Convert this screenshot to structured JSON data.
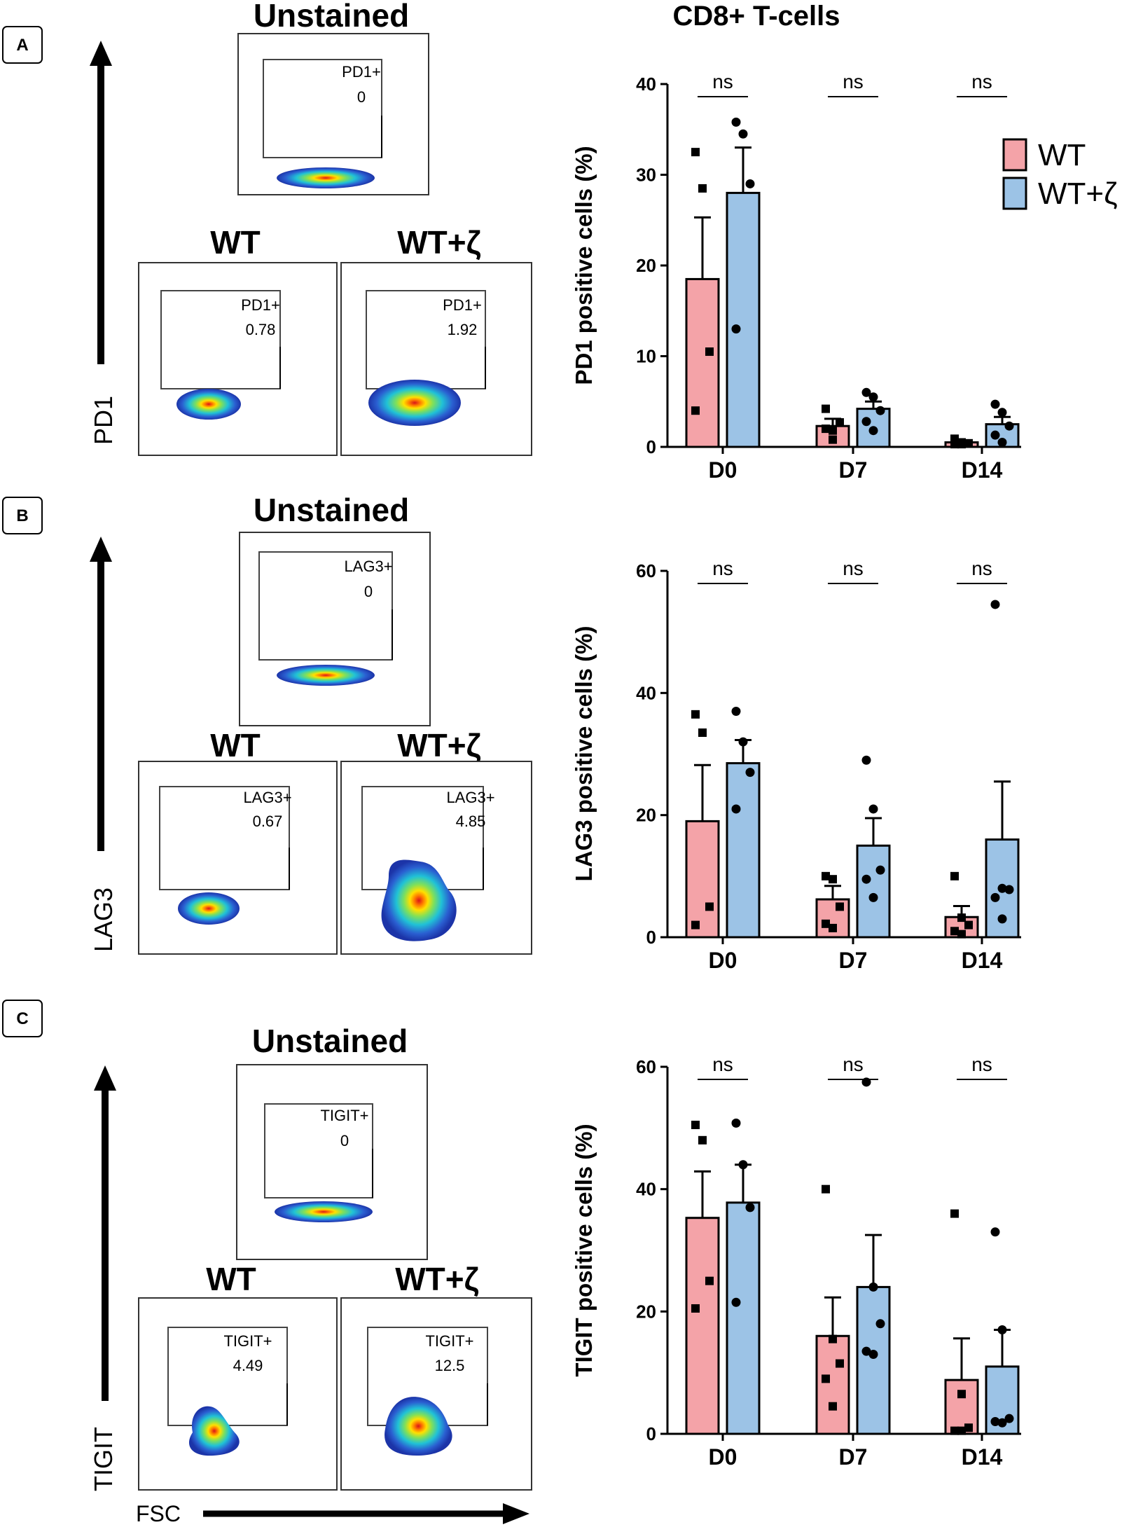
{
  "figure_title": "CD8+ T-cells",
  "legend": {
    "entries": [
      {
        "label": "WT",
        "color": "#F4A3A8"
      },
      {
        "label": "WT+ζ",
        "color": "#9CC3E6"
      }
    ]
  },
  "colors": {
    "wt_bar": "#F4A3A8",
    "wtz_bar": "#9CC3E6",
    "axis": "#000000",
    "blob_outer": "#1f3fbf",
    "blob_mid": "#22c0d8",
    "blob_mid2": "#7fe05a",
    "blob_core": "#ffd400",
    "blob_center": "#e3201b"
  },
  "x_axis_label": "FSC",
  "panels": [
    {
      "letter": "A",
      "marker": "PD1",
      "unstained": {
        "title": "Unstained",
        "gate_label": "PD1+",
        "gate_value": "0"
      },
      "wt": {
        "title": "WT",
        "gate_label": "PD1+",
        "gate_value": "0.78"
      },
      "wtz": {
        "title": "WT+ζ",
        "gate_label": "PD1+",
        "gate_value": "1.92"
      }
    },
    {
      "letter": "B",
      "marker": "LAG3",
      "unstained": {
        "title": "Unstained",
        "gate_label": "LAG3+",
        "gate_value": "0"
      },
      "wt": {
        "title": "WT",
        "gate_label": "LAG3+",
        "gate_value": "0.67"
      },
      "wtz": {
        "title": "WT+ζ",
        "gate_label": "LAG3+",
        "gate_value": "4.85"
      }
    },
    {
      "letter": "C",
      "marker": "TIGIT",
      "unstained": {
        "title": "Unstained",
        "gate_label": "TIGIT+",
        "gate_value": "0"
      },
      "wt": {
        "title": "WT",
        "gate_label": "TIGIT+",
        "gate_value": "4.49"
      },
      "wtz": {
        "title": "WT+ζ",
        "gate_label": "TIGIT+",
        "gate_value": "12.5"
      }
    }
  ],
  "chart_data": [
    {
      "type": "bar",
      "title": "CD8+ T-cells",
      "ylabel": "PD1 positive cells (%)",
      "xlabel": "",
      "categories": [
        "D0",
        "D7",
        "D14"
      ],
      "ylim": [
        0,
        40
      ],
      "yticks": [
        0,
        10,
        20,
        30,
        40
      ],
      "significance": [
        "ns",
        "ns",
        "ns"
      ],
      "series": [
        {
          "name": "WT",
          "values": [
            18.5,
            2.3,
            0.5
          ],
          "sem": [
            6.8,
            0.8,
            0.2
          ],
          "points": [
            [
              32.5,
              28.5,
              10.5,
              4.0
            ],
            [
              4.2,
              1.8,
              2.7,
              2.0,
              0.8
            ],
            [
              0.9,
              0.5,
              0.4,
              0.3,
              0.3
            ]
          ]
        },
        {
          "name": "WT+ζ",
          "values": [
            28.0,
            4.2,
            2.5
          ],
          "sem": [
            5.0,
            0.8,
            0.8
          ],
          "points": [
            [
              35.8,
              34.5,
              29.0,
              13.0
            ],
            [
              6.0,
              5.5,
              4.0,
              2.8,
              1.8
            ],
            [
              4.7,
              3.8,
              2.3,
              1.3,
              0.5
            ]
          ]
        }
      ]
    },
    {
      "type": "bar",
      "title": "",
      "ylabel": "LAG3 positive cells (%)",
      "xlabel": "",
      "categories": [
        "D0",
        "D7",
        "D14"
      ],
      "ylim": [
        0,
        60
      ],
      "yticks": [
        0,
        20,
        40,
        60
      ],
      "significance": [
        "ns",
        "ns",
        "ns"
      ],
      "series": [
        {
          "name": "WT",
          "values": [
            19.0,
            6.2,
            3.3
          ],
          "sem": [
            9.2,
            2.2,
            1.8
          ],
          "points": [
            [
              36.5,
              33.5,
              5.0,
              2.0
            ],
            [
              10.0,
              9.5,
              5.0,
              2.2,
              1.5
            ],
            [
              10.0,
              3.2,
              2.0,
              1.0,
              0.5
            ]
          ]
        },
        {
          "name": "WT+ζ",
          "values": [
            28.5,
            15.0,
            16.0
          ],
          "sem": [
            3.8,
            4.5,
            9.5
          ],
          "points": [
            [
              37.0,
              32.0,
              27.0,
              21.0
            ],
            [
              29.0,
              21.0,
              11.0,
              9.5,
              6.5
            ],
            [
              54.5,
              8.0,
              7.8,
              6.5,
              3.0
            ]
          ]
        }
      ]
    },
    {
      "type": "bar",
      "title": "",
      "ylabel": "TIGIT positive cells (%)",
      "xlabel": "",
      "categories": [
        "D0",
        "D7",
        "D14"
      ],
      "ylim": [
        0,
        60
      ],
      "yticks": [
        0,
        20,
        40,
        60
      ],
      "significance": [
        "ns",
        "ns",
        "ns"
      ],
      "series": [
        {
          "name": "WT",
          "values": [
            35.3,
            16.0,
            8.8
          ],
          "sem": [
            7.6,
            6.3,
            6.8
          ],
          "points": [
            [
              50.5,
              48.0,
              25.0,
              20.5
            ],
            [
              40.0,
              15.5,
              11.5,
              9.0,
              4.5
            ],
            [
              36.0,
              6.5,
              1.0,
              0.5,
              0.5
            ]
          ]
        },
        {
          "name": "WT+ζ",
          "values": [
            37.8,
            24.0,
            11.0
          ],
          "sem": [
            6.2,
            8.5,
            6.0
          ],
          "points": [
            [
              50.8,
              44.0,
              37.0,
              21.5
            ],
            [
              57.5,
              24.0,
              18.0,
              13.5,
              13.0
            ],
            [
              33.0,
              17.0,
              2.5,
              2.0,
              1.8
            ]
          ]
        }
      ]
    }
  ]
}
